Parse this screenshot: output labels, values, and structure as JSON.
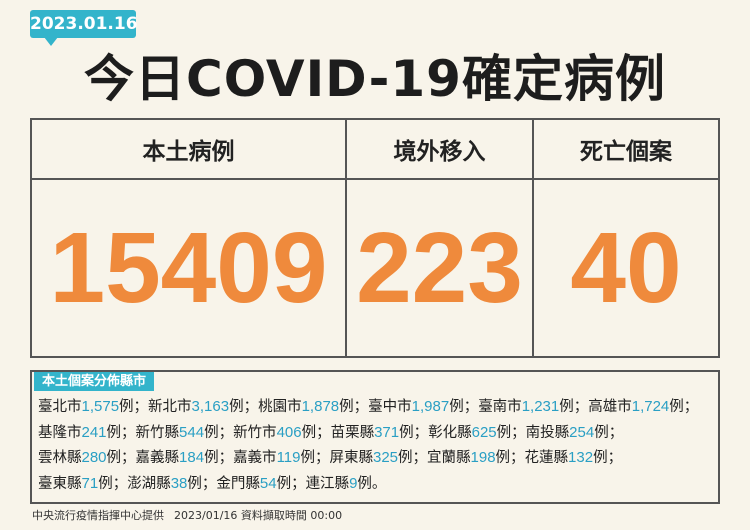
{
  "date": "2023.01.16",
  "title": "今日COVID-19確定病例",
  "table": {
    "headers": [
      "本土病例",
      "境外移入",
      "死亡個案"
    ],
    "values": [
      "15409",
      "223",
      "40"
    ]
  },
  "distribution": {
    "label": "本土個案分佈縣市",
    "rows": [
      [
        {
          "name": "臺北市",
          "count": "1,575",
          "unit": "例",
          "sep": "；"
        },
        {
          "name": "新北市",
          "count": "3,163",
          "unit": "例",
          "sep": "；"
        },
        {
          "name": "桃園市",
          "count": "1,878",
          "unit": "例",
          "sep": "；"
        },
        {
          "name": "臺中市",
          "count": "1,987",
          "unit": "例",
          "sep": "；"
        },
        {
          "name": "臺南市",
          "count": "1,231",
          "unit": "例",
          "sep": "；"
        },
        {
          "name": "高雄市",
          "count": "1,724",
          "unit": "例",
          "sep": "；"
        }
      ],
      [
        {
          "name": "基隆市",
          "count": "241",
          "unit": "例",
          "sep": "；"
        },
        {
          "name": "新竹縣",
          "count": "544",
          "unit": "例",
          "sep": "；"
        },
        {
          "name": "新竹市",
          "count": "406",
          "unit": "例",
          "sep": "；"
        },
        {
          "name": "苗栗縣",
          "count": "371",
          "unit": "例",
          "sep": "；"
        },
        {
          "name": "彰化縣",
          "count": "625",
          "unit": "例",
          "sep": "；"
        },
        {
          "name": "南投縣",
          "count": "254",
          "unit": "例",
          "sep": "；"
        }
      ],
      [
        {
          "name": "雲林縣",
          "count": "280",
          "unit": "例",
          "sep": "；"
        },
        {
          "name": "嘉義縣",
          "count": "184",
          "unit": "例",
          "sep": "；"
        },
        {
          "name": "嘉義市",
          "count": "119",
          "unit": "例",
          "sep": "；"
        },
        {
          "name": "屏東縣",
          "count": "325",
          "unit": "例",
          "sep": "；"
        },
        {
          "name": "宜蘭縣",
          "count": "198",
          "unit": "例",
          "sep": "；"
        },
        {
          "name": "花蓮縣",
          "count": "132",
          "unit": "例",
          "sep": "；"
        }
      ],
      [
        {
          "name": "臺東縣",
          "count": "71",
          "unit": "例",
          "sep": "；"
        },
        {
          "name": "澎湖縣",
          "count": "38",
          "unit": "例",
          "sep": "；"
        },
        {
          "name": "金門縣",
          "count": "54",
          "unit": "例",
          "sep": "；"
        },
        {
          "name": "連江縣",
          "count": "9",
          "unit": "例",
          "sep": "。"
        }
      ]
    ]
  },
  "footer": {
    "source": "中央流行疫情指揮中心提供",
    "time": "2023/01/16 資料擷取時間 00:00"
  }
}
